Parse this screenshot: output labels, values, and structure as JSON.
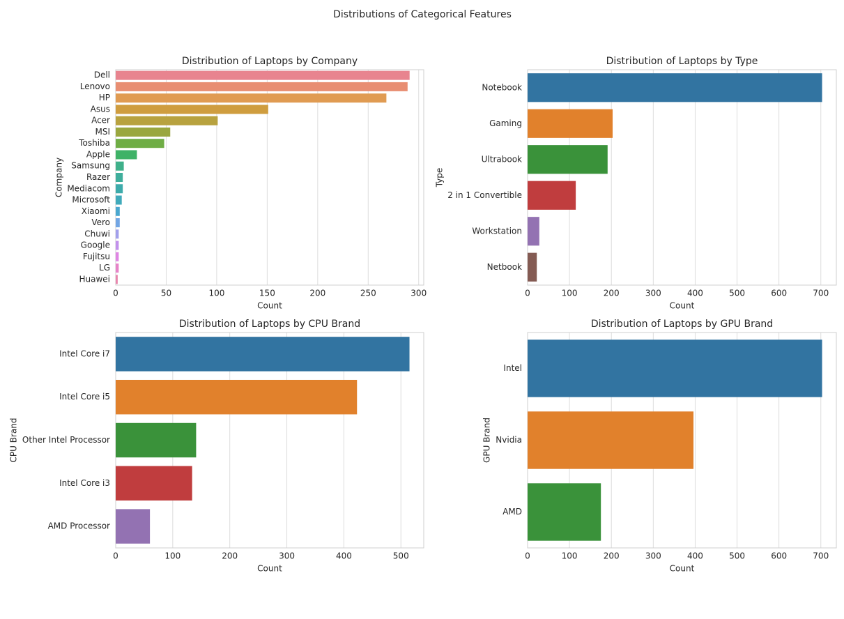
{
  "title": "Distributions of Categorical Features",
  "chart_data": [
    {
      "type": "bar",
      "orientation": "horizontal",
      "title": "Distribution of Laptops by Company",
      "xlabel": "Count",
      "ylabel": "Company",
      "categories": [
        "Dell",
        "Lenovo",
        "HP",
        "Asus",
        "Acer",
        "MSI",
        "Toshiba",
        "Apple",
        "Samsung",
        "Razer",
        "Mediacom",
        "Microsoft",
        "Xiaomi",
        "Vero",
        "Chuwi",
        "Google",
        "Fujitsu",
        "LG",
        "Huawei"
      ],
      "values": [
        291,
        289,
        268,
        151,
        101,
        54,
        48,
        21,
        8,
        7,
        7,
        6,
        4,
        4,
        3,
        3,
        3,
        3,
        2
      ],
      "colors": [
        "#e8848f",
        "#e88e72",
        "#e09b52",
        "#cf9d3f",
        "#b8a23f",
        "#9aa73f",
        "#6fad45",
        "#3fb267",
        "#3fb08a",
        "#3fae9c",
        "#3dabab",
        "#40aabb",
        "#4aa7cf",
        "#73a6e4",
        "#a2a0ec",
        "#c291ec",
        "#df86e3",
        "#e783c8",
        "#e886ad"
      ],
      "xlim": [
        0,
        305
      ],
      "xticks": [
        0,
        50,
        100,
        150,
        200,
        250,
        300
      ],
      "grid": true
    },
    {
      "type": "bar",
      "orientation": "horizontal",
      "title": "Distribution of Laptops by Type",
      "xlabel": "Count",
      "ylabel": "Type",
      "categories": [
        "Notebook",
        "Gaming",
        "Ultrabook",
        "2 in 1 Convertible",
        "Workstation",
        "Netbook"
      ],
      "values": [
        703,
        203,
        191,
        115,
        28,
        22
      ],
      "colors": [
        "#3274a1",
        "#e1812c",
        "#3a923a",
        "#c03d3e",
        "#9372b2",
        "#845b53"
      ],
      "xlim": [
        0,
        737
      ],
      "xticks": [
        0,
        100,
        200,
        300,
        400,
        500,
        600,
        700
      ],
      "grid": true
    },
    {
      "type": "bar",
      "orientation": "horizontal",
      "title": "Distribution of Laptops by CPU Brand",
      "xlabel": "Count",
      "ylabel": "CPU Brand",
      "categories": [
        "Intel Core i7",
        "Intel Core i5",
        "Other Intel Processor",
        "Intel Core i3",
        "AMD Processor"
      ],
      "values": [
        515,
        423,
        141,
        134,
        60
      ],
      "colors": [
        "#3274a1",
        "#e1812c",
        "#3a923a",
        "#c03d3e",
        "#9372b2"
      ],
      "xlim": [
        0,
        540
      ],
      "xticks": [
        0,
        100,
        200,
        300,
        400,
        500
      ],
      "grid": true
    },
    {
      "type": "bar",
      "orientation": "horizontal",
      "title": "Distribution of Laptops by GPU Brand",
      "xlabel": "Count",
      "ylabel": "GPU Brand",
      "categories": [
        "Intel",
        "Nvidia",
        "AMD"
      ],
      "values": [
        703,
        396,
        175
      ],
      "colors": [
        "#3274a1",
        "#e1812c",
        "#3a923a"
      ],
      "xlim": [
        0,
        737
      ],
      "xticks": [
        0,
        100,
        200,
        300,
        400,
        500,
        600,
        700
      ],
      "grid": true
    }
  ]
}
